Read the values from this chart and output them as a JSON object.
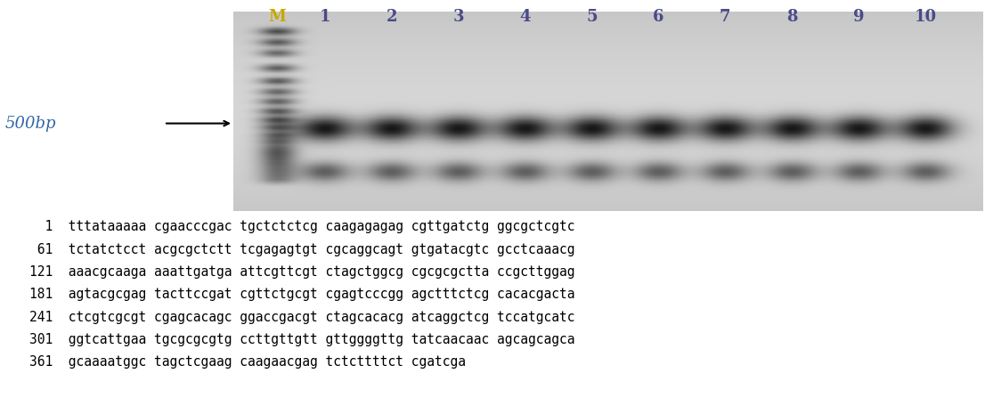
{
  "lane_labels": [
    "M",
    "1",
    "2",
    "3",
    "4",
    "5",
    "6",
    "7",
    "8",
    "9",
    "10"
  ],
  "label_500bp": "500bp",
  "sequence_lines": [
    [
      "  1",
      "tttataaaaa",
      "cgaacccgac",
      "tgctctctcg",
      "caagagagag",
      "cgttgatctg",
      "ggcgctcgtc"
    ],
    [
      " 61",
      "tctatctcct",
      "acgcgctctt",
      "tcgagagtgt",
      "cgcaggcagt",
      "gtgatacgtc",
      "gcctcaaacg"
    ],
    [
      "121",
      "aaacgcaaga",
      "aaattgatga",
      "attcgttcgt",
      "ctagctggcg",
      "cgcgcgctta",
      "ccgcttggag"
    ],
    [
      "181",
      "agtacgcgag",
      "tacttccgat",
      "cgttctgcgt",
      "cgagtcccgg",
      "agctttctcg",
      "cacacgacta"
    ],
    [
      "241",
      "ctcgtcgcgt",
      "cgagcacagc",
      "ggaccgacgt",
      "ctagcacacg",
      "atcaggctcg",
      "tccatgcatc"
    ],
    [
      "301",
      "ggtcattgaa",
      "tgcgcgcgtg",
      "ccttgttgtt",
      "gttggggttg",
      "tatcaacaac",
      "agcagcagca"
    ],
    [
      "361",
      "gcaaaatggc",
      "tagctcgaag",
      "caagaacgag",
      "tctcttttct",
      "cgatcga",
      ""
    ]
  ],
  "figure_width": 11.15,
  "figure_height": 4.47,
  "dpi": 100,
  "gel_bg": "#bebebe",
  "gel_lighter": "#d4d4d4",
  "band_color_dark": "#1a1a1a",
  "band_color_mid": "#555555",
  "label_color_M": "#c8a800",
  "label_color_nums": "#4a4a8a",
  "bp500_color": "#3366aa"
}
